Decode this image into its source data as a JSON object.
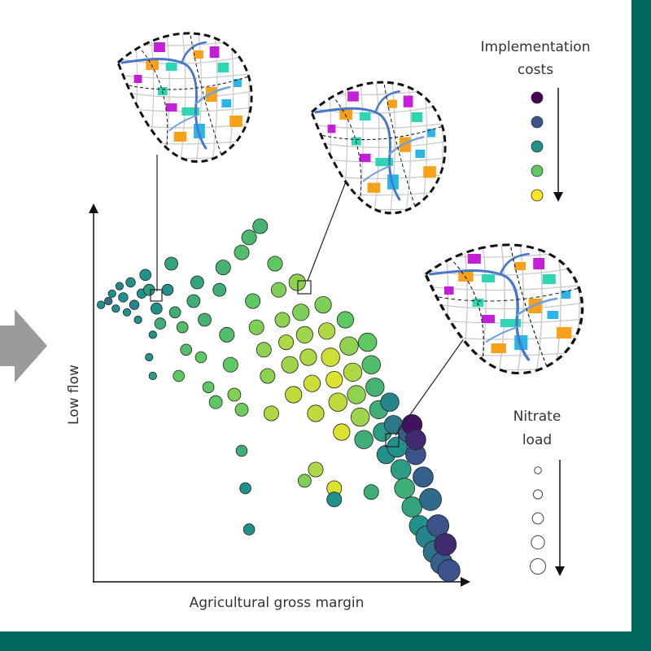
{
  "chart_data": {
    "type": "scatter",
    "xlabel": "Agricultural gross margin",
    "ylabel": "Low flow",
    "axis_ticks": "none",
    "grid": false,
    "color_encoding": {
      "title": [
        "Implementation",
        "costs"
      ],
      "levels": [
        "#440154",
        "#3b528b",
        "#21918c",
        "#5ec962",
        "#fde725"
      ],
      "direction": "top-to-bottom decreasing"
    },
    "size_encoding": {
      "title": [
        "Nitrate",
        "load"
      ],
      "levels": [
        1,
        2,
        3,
        4,
        5
      ],
      "direction": "top-to-bottom increasing"
    },
    "xlim": [
      0,
      100
    ],
    "ylim": [
      0,
      100
    ],
    "points_format": [
      "x",
      "y",
      "cost_level",
      "nitrate_level"
    ],
    "points": [
      [
        2,
        74,
        3,
        1
      ],
      [
        4,
        75,
        2.5,
        1
      ],
      [
        5,
        77,
        3,
        1
      ],
      [
        6,
        73,
        3,
        1
      ],
      [
        7,
        79,
        2.8,
        1
      ],
      [
        8,
        76,
        3,
        1.5
      ],
      [
        9,
        72,
        3,
        1
      ],
      [
        10,
        80,
        3,
        1.5
      ],
      [
        11,
        74,
        2.8,
        1.5
      ],
      [
        12,
        70,
        3,
        1
      ],
      [
        13,
        77,
        3,
        1.5
      ],
      [
        14,
        82,
        3,
        2
      ],
      [
        15,
        78,
        3.2,
        2
      ],
      [
        16,
        66,
        3,
        1
      ],
      [
        15,
        60,
        3,
        1
      ],
      [
        16,
        55,
        3.2,
        1
      ],
      [
        17,
        73,
        3,
        2
      ],
      [
        18,
        69,
        3.5,
        2
      ],
      [
        20,
        78,
        3,
        2
      ],
      [
        21,
        85,
        3.3,
        2.5
      ],
      [
        22,
        72,
        3.5,
        2
      ],
      [
        24,
        68,
        3.8,
        2
      ],
      [
        25,
        62,
        3.8,
        2
      ],
      [
        23,
        55,
        4,
        2
      ],
      [
        27,
        75,
        3.5,
        2.5
      ],
      [
        28,
        80,
        3.3,
        2.5
      ],
      [
        30,
        70,
        3.6,
        2.5
      ],
      [
        29,
        60,
        4,
        2
      ],
      [
        31,
        52,
        4,
        2
      ],
      [
        33,
        48,
        4,
        2.5
      ],
      [
        34,
        78,
        3.5,
        2.5
      ],
      [
        35,
        84,
        3.6,
        3
      ],
      [
        36,
        66,
        3.8,
        3
      ],
      [
        37,
        58,
        4,
        3
      ],
      [
        38,
        50,
        4.2,
        2.5
      ],
      [
        40,
        46,
        4.1,
        2.5
      ],
      [
        40,
        88,
        3.8,
        3
      ],
      [
        42,
        92,
        3.7,
        3
      ],
      [
        43,
        75,
        4,
        3
      ],
      [
        44,
        68,
        4.2,
        3
      ],
      [
        45,
        95,
        3.6,
        3
      ],
      [
        46,
        62,
        4.3,
        3
      ],
      [
        47,
        55,
        4.3,
        3
      ],
      [
        48,
        45,
        4.5,
        3
      ],
      [
        49,
        85,
        4,
        3
      ],
      [
        50,
        78,
        4.2,
        3
      ],
      [
        51,
        70,
        4.3,
        3
      ],
      [
        52,
        64,
        4.5,
        3
      ],
      [
        53,
        58,
        4.4,
        3.5
      ],
      [
        54,
        50,
        4.6,
        3.5
      ],
      [
        55,
        80,
        4.3,
        3.5
      ],
      [
        56,
        72,
        4.2,
        3.5
      ],
      [
        57,
        66,
        4.4,
        3.5
      ],
      [
        58,
        60,
        4.5,
        3.5
      ],
      [
        59,
        53,
        4.7,
        3.5
      ],
      [
        60,
        45,
        4.6,
        3.5
      ],
      [
        62,
        74,
        4.2,
        3.5
      ],
      [
        63,
        67,
        4.5,
        3.5
      ],
      [
        64,
        60,
        4.7,
        4
      ],
      [
        65,
        54,
        4.8,
        3.5
      ],
      [
        66,
        48,
        4.6,
        4
      ],
      [
        67,
        40,
        4.8,
        3.5
      ],
      [
        68,
        70,
        4,
        3.5
      ],
      [
        69,
        63,
        4.3,
        4
      ],
      [
        70,
        56,
        4.5,
        4
      ],
      [
        71,
        50,
        4.3,
        4
      ],
      [
        72,
        44,
        4.4,
        4
      ],
      [
        73,
        38,
        3.5,
        4
      ],
      [
        74,
        64,
        4,
        4
      ],
      [
        75,
        58,
        3.8,
        4
      ],
      [
        76,
        52,
        3.6,
        4
      ],
      [
        77,
        46,
        3.5,
        4
      ],
      [
        78,
        40,
        3.2,
        4
      ],
      [
        79,
        34,
        3,
        4
      ],
      [
        80,
        48,
        2.8,
        4
      ],
      [
        81,
        42,
        2.6,
        4
      ],
      [
        82,
        36,
        3,
        4.5
      ],
      [
        83,
        30,
        3.2,
        4.5
      ],
      [
        84,
        25,
        3.5,
        4.5
      ],
      [
        85,
        40,
        2.2,
        4.5
      ],
      [
        86,
        20,
        3.3,
        4.5
      ],
      [
        87,
        34,
        2,
        4.5
      ],
      [
        88,
        15,
        3,
        4.5
      ],
      [
        89,
        28,
        2.2,
        4.5
      ],
      [
        90,
        12,
        2.8,
        5
      ],
      [
        91,
        22,
        2.4,
        5
      ],
      [
        92,
        8,
        2.5,
        5
      ],
      [
        93,
        15,
        2,
        5
      ],
      [
        94,
        5,
        2.2,
        5
      ],
      [
        95,
        10,
        1.5,
        5
      ],
      [
        96,
        3,
        2,
        5
      ],
      [
        86,
        42,
        1.2,
        4.5
      ],
      [
        87,
        38,
        1.5,
        4.5
      ],
      [
        41,
        25,
        3,
        2
      ],
      [
        42,
        14,
        3,
        2
      ],
      [
        40,
        35,
        3.5,
        2
      ],
      [
        60,
        30,
        4.5,
        3
      ],
      [
        65,
        25,
        4.8,
        3
      ],
      [
        57,
        27,
        4.2,
        2.5
      ],
      [
        75,
        24,
        3.5,
        3
      ],
      [
        65,
        22,
        3,
        3
      ]
    ],
    "map_colors": {
      "patch_a": "#c21fd6",
      "patch_b": "#f7a11a",
      "patch_c": "#2fd6b4",
      "patch_d": "#29b6e6",
      "river": "#4a78c8"
    }
  }
}
